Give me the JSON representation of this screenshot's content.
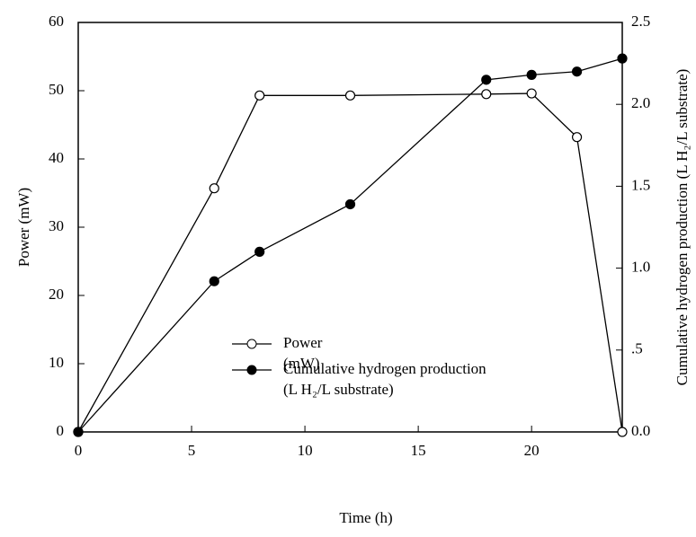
{
  "chart_data": {
    "type": "line",
    "x_label": "Time (h)",
    "y_label": "Power (mW)",
    "y2_label": "Cumulative hydrogen production (L H₂/L substrate)",
    "xlim": [
      0,
      24
    ],
    "xticks": [
      0,
      5,
      10,
      15,
      20
    ],
    "ylim": [
      0,
      60
    ],
    "yticks": [
      0,
      10,
      20,
      30,
      40,
      50,
      60
    ],
    "y2lim": [
      0,
      2.5
    ],
    "y2ticks": [
      {
        "value": 0,
        "label": "0.0"
      },
      {
        "value": 0.5,
        "label": ".5"
      },
      {
        "value": 1,
        "label": "1.0"
      },
      1.5,
      {
        "value": 2,
        "label": "2.0"
      },
      2.5
    ],
    "series": [
      {
        "name": "Power (mW)",
        "color": "#000000",
        "marker": "open",
        "x": [
          0,
          6,
          8,
          12,
          18,
          20,
          22,
          24
        ],
        "values": [
          0,
          35.7,
          49.3,
          49.3,
          49.5,
          49.6,
          43.2,
          0
        ]
      },
      {
        "name": "Cumulative hydrogen production (L H₂/L substrate)",
        "color": "#000000",
        "marker": "filled",
        "axis": "y2",
        "x": [
          0,
          6,
          8,
          12,
          18,
          20,
          22,
          24
        ],
        "values": [
          0,
          0.92,
          1.1,
          1.39,
          2.15,
          2.18,
          2.2,
          2.28
        ]
      }
    ]
  }
}
